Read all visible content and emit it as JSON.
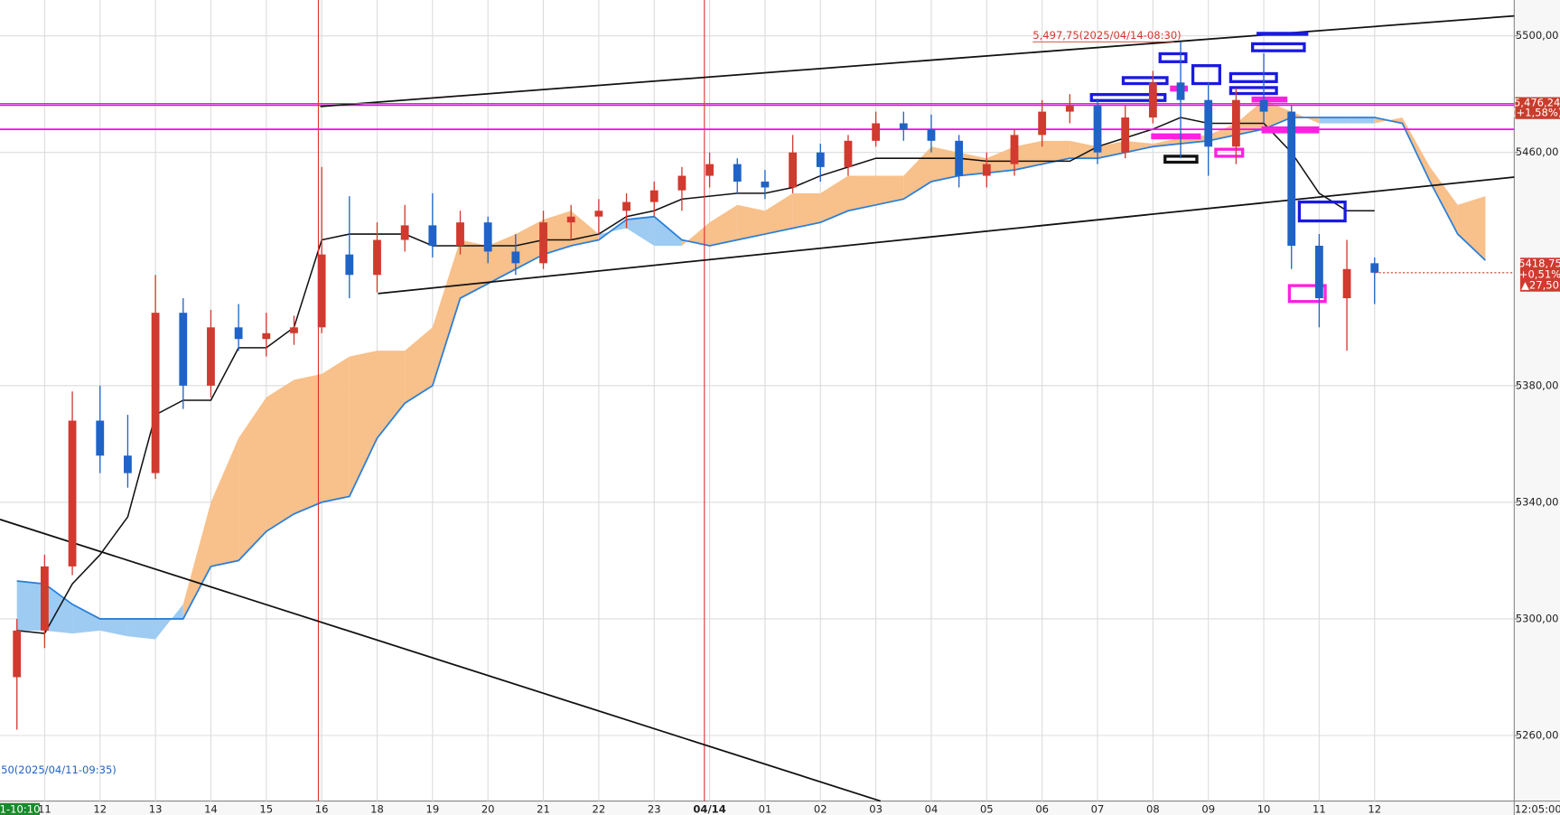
{
  "chart_data": {
    "type": "candlestick",
    "categories": [
      null,
      "11",
      null,
      "12",
      null,
      "13",
      null,
      "14",
      null,
      "15",
      null,
      "16",
      null,
      "18",
      null,
      "19",
      null,
      "20",
      null,
      "21",
      null,
      "22",
      null,
      "23",
      null,
      "04/14",
      null,
      "01",
      null,
      "02",
      null,
      "03",
      null,
      "04",
      null,
      "05",
      null,
      "06",
      null,
      "07",
      null,
      "08",
      null,
      "09",
      null,
      "10",
      null,
      "11",
      null,
      "12",
      null,
      null,
      null,
      null
    ],
    "open": [
      5280,
      5296,
      5318,
      5368,
      5356,
      5350,
      5405,
      5380,
      5400,
      5396,
      5398,
      5400,
      5425,
      5418,
      5430,
      5435,
      5428,
      5436,
      5426,
      5422,
      5436,
      5438,
      5440,
      5443,
      5447,
      5452,
      5456,
      5450,
      5448,
      5460,
      5455,
      5464,
      5470,
      5468,
      5464,
      5452,
      5456,
      5466,
      5474,
      5476,
      5460,
      5472,
      5484,
      5478,
      5462,
      5478,
      5474,
      5428,
      5410,
      5422,
      null,
      null,
      null,
      null
    ],
    "high": [
      5300,
      5322,
      5378,
      5380,
      5370,
      5418,
      5410,
      5406,
      5408,
      5405,
      5404,
      5455,
      5445,
      5436,
      5442,
      5446,
      5440,
      5438,
      5432,
      5440,
      5442,
      5444,
      5446,
      5450,
      5455,
      5460,
      5458,
      5454,
      5466,
      5463,
      5466,
      5474,
      5474,
      5473,
      5466,
      5460,
      5468,
      5478,
      5480,
      5478,
      5476,
      5488,
      5498,
      5484,
      5482,
      5494,
      5476,
      5432,
      5430,
      5424,
      null,
      null,
      null,
      null
    ],
    "low": [
      5262,
      5290,
      5315,
      5350,
      5345,
      5348,
      5372,
      5376,
      5392,
      5390,
      5394,
      5398,
      5410,
      5412,
      5426,
      5424,
      5425,
      5422,
      5418,
      5420,
      5430,
      5432,
      5434,
      5438,
      5440,
      5448,
      5446,
      5444,
      5446,
      5450,
      5452,
      5462,
      5464,
      5460,
      5448,
      5448,
      5452,
      5462,
      5470,
      5456,
      5458,
      5470,
      5458,
      5452,
      5456,
      5470,
      5420,
      5400,
      5392,
      5408,
      null,
      null,
      null,
      null
    ],
    "close": [
      5296,
      5318,
      5368,
      5356,
      5350,
      5405,
      5380,
      5400,
      5396,
      5398,
      5400,
      5425,
      5418,
      5430,
      5435,
      5428,
      5436,
      5426,
      5422,
      5436,
      5438,
      5440,
      5443,
      5447,
      5452,
      5456,
      5450,
      5448,
      5460,
      5455,
      5464,
      5470,
      5468,
      5464,
      5452,
      5456,
      5466,
      5474,
      5476,
      5460,
      5472,
      5484,
      5478,
      5462,
      5478,
      5474,
      5428,
      5410,
      5420,
      5418.75,
      null,
      null,
      null,
      null
    ],
    "up_color": "#d03a2f",
    "down_color": "#1f63c6",
    "base_line": {
      "color": "#111111",
      "values": [
        5296,
        5295,
        5312,
        5322,
        5335,
        5370,
        5375,
        5375,
        5393,
        5393,
        5400,
        5430,
        5432,
        5432,
        5432,
        5428,
        5428,
        5428,
        5428,
        5430,
        5430,
        5432,
        5438,
        5440,
        5444,
        5445,
        5446,
        5446,
        5448,
        5452,
        5455,
        5458,
        5458,
        5458,
        5458,
        5457,
        5457,
        5457,
        5457,
        5462,
        5465,
        5468,
        5472,
        5470,
        5470,
        5470,
        5460,
        5446,
        5440,
        5440,
        null,
        null,
        null,
        null
      ]
    },
    "cloud": {
      "rise_color": "#f8c08a",
      "fall_color": "#9dcbf2",
      "edge_color": "#2a7fd8",
      "span_a": [
        5296,
        5296,
        5295,
        5296,
        5294,
        5293,
        5305,
        5340,
        5362,
        5376,
        5382,
        5384,
        5390,
        5392,
        5392,
        5400,
        5430,
        5428,
        5432,
        5437,
        5440,
        5432,
        5434,
        5428,
        5428,
        5436,
        5442,
        5440,
        5446,
        5446,
        5452,
        5452,
        5452,
        5462,
        5460,
        5458,
        5462,
        5464,
        5464,
        5462,
        5464,
        5463,
        5465,
        5466,
        5470,
        5478,
        5474,
        5470,
        5470,
        5470,
        5472,
        5455,
        5442,
        5445
      ],
      "span_b": [
        5313,
        5312,
        5305,
        5300,
        5300,
        5300,
        5300,
        5318,
        5320,
        5330,
        5336,
        5340,
        5342,
        5362,
        5374,
        5380,
        5410,
        5415,
        5420,
        5425,
        5428,
        5430,
        5437,
        5438,
        5430,
        5428,
        5430,
        5432,
        5434,
        5436,
        5440,
        5442,
        5444,
        5450,
        5452,
        5453,
        5454,
        5456,
        5458,
        5458,
        5460,
        5462,
        5463,
        5464,
        5466,
        5468,
        5472,
        5472,
        5472,
        5472,
        5470,
        5450,
        5432,
        5423
      ]
    },
    "ylim": [
      5237.5,
      5512.3
    ],
    "yticks": [
      {
        "value": 5260,
        "label": "5260,00"
      },
      {
        "value": 5300,
        "label": "5300,00"
      },
      {
        "value": 5340,
        "label": "5340,00"
      },
      {
        "value": 5380,
        "label": "5380,00"
      },
      {
        "value": 5460,
        "label": "5460,00"
      },
      {
        "value": 5500,
        "label": "5500,00"
      }
    ],
    "grid": true,
    "level": {
      "value": 5476.24,
      "label": "5,476,24",
      "change": "(+1,58%)",
      "color": "#ff00ff"
    },
    "last_price": {
      "value": 5418.75,
      "label": "5418,75",
      "change": "+0,51%",
      "delta": "▲27,50"
    },
    "high_note": "5,497,75(2025/04/14-08:30)",
    "low_note": "50(2025/04/11-09:35)",
    "cursor_time": "1-10:10",
    "end_time": "12:05:00"
  }
}
